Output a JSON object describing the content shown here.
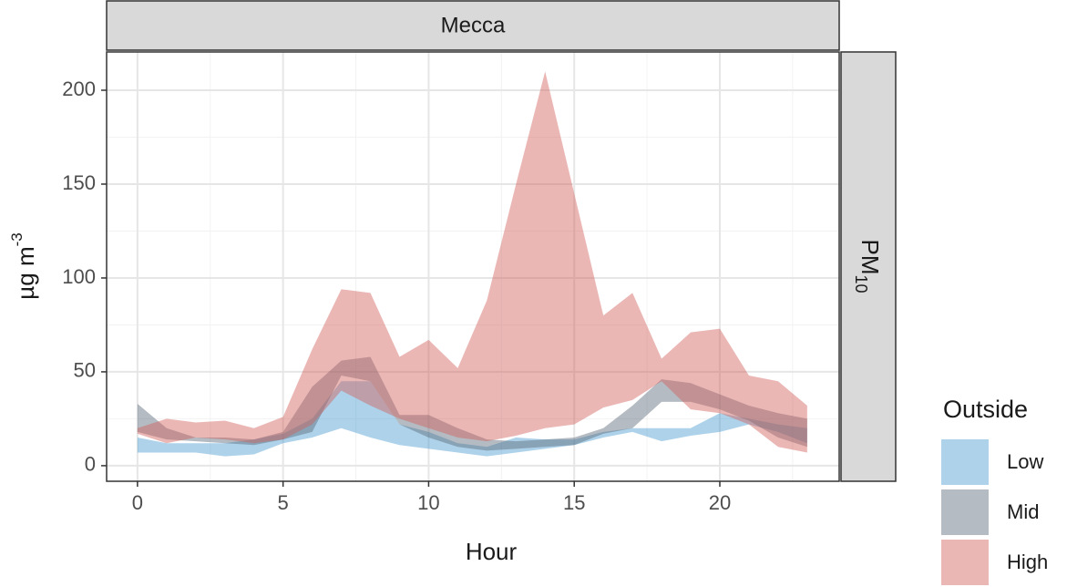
{
  "chart_data": {
    "type": "ribbon",
    "strip_top": "Mecca",
    "strip_right": {
      "base": "PM",
      "sub": "10"
    },
    "x_label": "Hour",
    "y_label": {
      "base": "µg m",
      "sup": "-3"
    },
    "legend_title": "Outside",
    "legend_position": "right",
    "grid": true,
    "xlim": [
      -1.06,
      24.1
    ],
    "ylim": [
      -8.3,
      220.4
    ],
    "xticks": [
      0,
      5,
      10,
      15,
      20
    ],
    "yticks": [
      0,
      50,
      100,
      150,
      200
    ],
    "x": [
      0,
      1,
      2,
      3,
      4,
      5,
      6,
      7,
      8,
      9,
      10,
      11,
      12,
      13,
      14,
      15,
      16,
      17,
      18,
      19,
      20,
      21,
      22,
      23
    ],
    "series": [
      {
        "name": "Low",
        "color": "#4a9bd0",
        "upper": [
          15,
          12,
          12,
          12,
          14,
          17,
          25,
          45,
          45,
          22,
          18,
          12,
          10,
          15,
          14,
          14,
          18,
          20,
          20,
          20,
          28,
          25,
          22,
          20
        ],
        "lower": [
          7,
          7,
          7,
          5,
          6,
          12,
          15,
          20,
          15,
          11,
          9,
          7,
          5,
          7,
          9,
          11,
          15,
          18,
          13,
          16,
          18,
          22,
          18,
          12
        ]
      },
      {
        "name": "Mid",
        "color": "#5a6878",
        "upper": [
          33,
          20,
          15,
          15,
          14,
          18,
          42,
          56,
          58,
          27,
          27,
          20,
          14,
          13,
          14,
          15,
          20,
          32,
          46,
          44,
          38,
          32,
          28,
          25
        ],
        "lower": [
          18,
          14,
          13,
          12,
          11,
          14,
          18,
          48,
          45,
          22,
          15,
          10,
          8,
          9,
          10,
          11,
          17,
          20,
          34,
          34,
          30,
          24,
          15,
          10
        ]
      },
      {
        "name": "High",
        "color": "#d0605a",
        "upper": [
          20,
          25,
          23,
          24,
          20,
          26,
          62,
          94,
          92,
          58,
          67,
          52,
          88,
          150,
          210,
          145,
          80,
          92,
          57,
          71,
          73,
          48,
          45,
          32
        ],
        "lower": [
          17,
          12,
          15,
          14,
          12,
          14,
          22,
          40,
          32,
          25,
          20,
          15,
          13,
          16,
          20,
          22,
          31,
          35,
          45,
          30,
          28,
          22,
          10,
          7
        ]
      }
    ]
  }
}
